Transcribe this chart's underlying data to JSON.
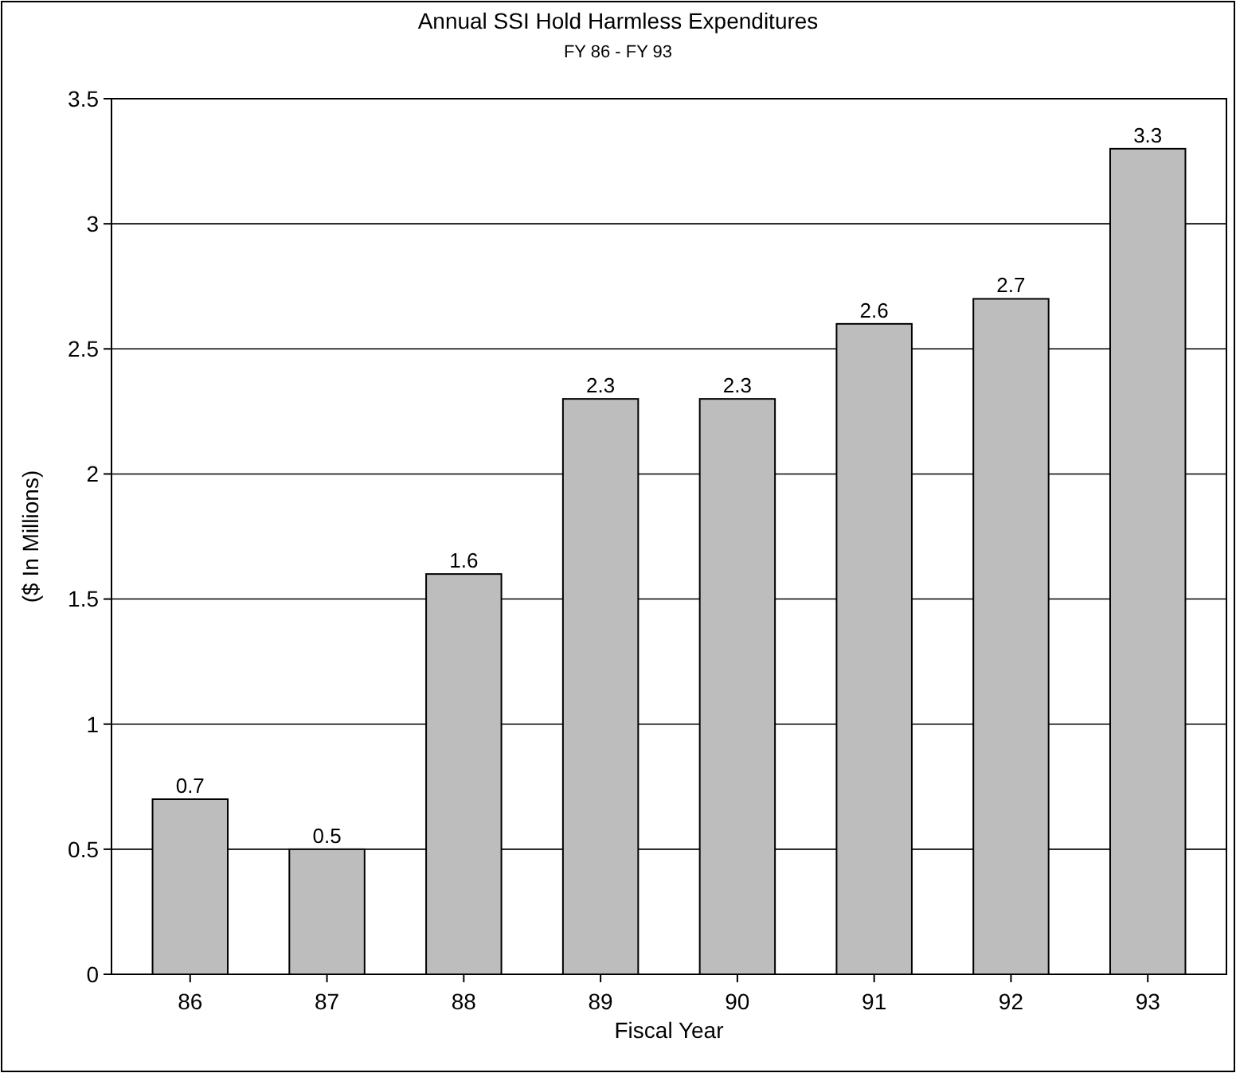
{
  "chart_data": {
    "type": "bar",
    "title": "Annual SSI Hold Harmless Expenditures",
    "subtitle": "FY 86 - FY 93",
    "xlabel": "Fiscal Year",
    "ylabel": "($ In Millions)",
    "categories": [
      "86",
      "87",
      "88",
      "89",
      "90",
      "91",
      "92",
      "93"
    ],
    "values": [
      0.7,
      0.5,
      1.6,
      2.3,
      2.3,
      2.6,
      2.7,
      3.3
    ],
    "color": "#bdbdbd",
    "ylim": [
      0,
      3.5
    ],
    "yticks": [
      0,
      0.5,
      1,
      1.5,
      2,
      2.5,
      3,
      3.5
    ],
    "grid": "y",
    "data_labels": true
  }
}
